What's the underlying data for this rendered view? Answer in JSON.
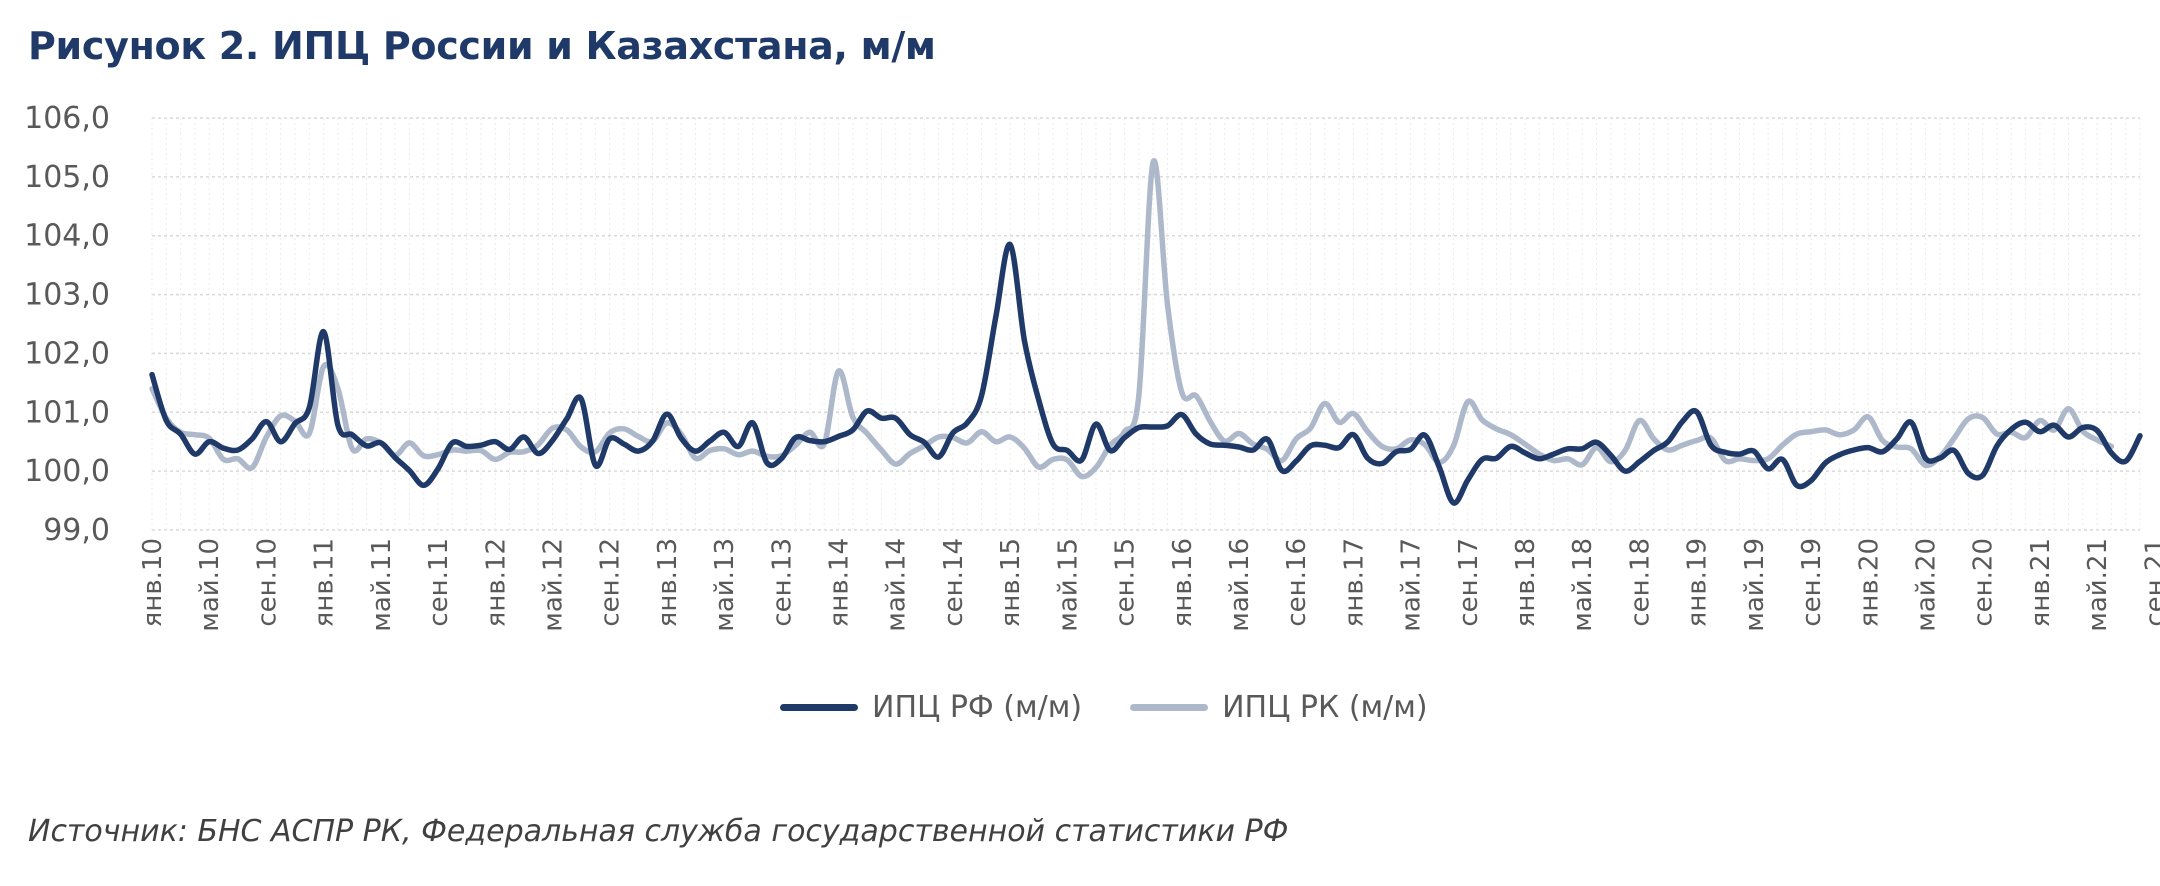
{
  "title": "Рисунок 2. ИПЦ России и Казахстана, м/м",
  "source": "Источник: БНС АСПР РК, Федеральная служба государственной статистики РФ",
  "colors": {
    "rf": "#1f3a68",
    "rk": "#adb9ca",
    "grid": "#d9d9d9",
    "text": "#595959"
  },
  "chart_data": {
    "type": "line",
    "ylim": [
      99.0,
      106.0
    ],
    "yticks": [
      "99,0",
      "100,0",
      "101,0",
      "102,0",
      "103,0",
      "104,0",
      "105,0",
      "106,0"
    ],
    "grid": true,
    "legend_position": "bottom",
    "xtick_labels": [
      "янв.10",
      "май.10",
      "сен.10",
      "янв.11",
      "май.11",
      "сен.11",
      "янв.12",
      "май.12",
      "сен.12",
      "янв.13",
      "май.13",
      "сен.13",
      "янв.14",
      "май.14",
      "сен.14",
      "янв.15",
      "май.15",
      "сен.15",
      "янв.16",
      "май.16",
      "сен.16",
      "янв.17",
      "май.17",
      "сен.17",
      "янв.18",
      "май.18",
      "сен.18",
      "янв.19",
      "май.19",
      "сен.19",
      "янв.20",
      "май.20",
      "сен.20",
      "янв.21",
      "май.21",
      "сен.21"
    ],
    "series": [
      {
        "name": "ИПЦ РФ (м/м)",
        "values": [
          101.64,
          100.86,
          100.63,
          100.29,
          100.5,
          100.39,
          100.36,
          100.55,
          100.84,
          100.5,
          100.81,
          101.08,
          102.37,
          100.78,
          100.62,
          100.43,
          100.48,
          100.23,
          100.01,
          99.76,
          100.04,
          100.48,
          100.42,
          100.44,
          100.5,
          100.37,
          100.58,
          100.3,
          100.52,
          100.89,
          101.23,
          100.1,
          100.55,
          100.46,
          100.34,
          100.51,
          100.97,
          100.56,
          100.34,
          100.51,
          100.66,
          100.42,
          100.82,
          100.14,
          100.21,
          100.57,
          100.52,
          100.5,
          100.59,
          100.7,
          101.02,
          100.9,
          100.9,
          100.62,
          100.49,
          100.24,
          100.65,
          100.82,
          101.28,
          102.62,
          103.85,
          102.22,
          101.21,
          100.46,
          100.35,
          100.19,
          100.8,
          100.35,
          100.57,
          100.74,
          100.75,
          100.77,
          100.96,
          100.63,
          100.46,
          100.44,
          100.41,
          100.36,
          100.54,
          100.01,
          100.17,
          100.43,
          100.44,
          100.4,
          100.62,
          100.22,
          100.13,
          100.33,
          100.37,
          100.61,
          100.07,
          99.46,
          99.85,
          100.2,
          100.22,
          100.42,
          100.31,
          100.21,
          100.29,
          100.38,
          100.38,
          100.49,
          100.27,
          100.0,
          100.16,
          100.35,
          100.5,
          100.84,
          101.01,
          100.44,
          100.32,
          100.29,
          100.34,
          100.04,
          100.2,
          99.76,
          99.84,
          100.14,
          100.28,
          100.36,
          100.4,
          100.33,
          100.55,
          100.83,
          100.22,
          100.22,
          100.35,
          99.96,
          99.93,
          100.43,
          100.71,
          100.83,
          100.67,
          100.78,
          100.58,
          100.74,
          100.69,
          100.31,
          100.17,
          100.6
        ]
      },
      {
        "name": "ИПЦ РК (м/м)",
        "values": [
          101.4,
          100.9,
          100.66,
          100.62,
          100.56,
          100.2,
          100.21,
          100.06,
          100.58,
          100.94,
          100.85,
          100.64,
          101.78,
          101.4,
          100.38,
          100.55,
          100.48,
          100.27,
          100.48,
          100.26,
          100.28,
          100.36,
          100.34,
          100.35,
          100.2,
          100.32,
          100.33,
          100.45,
          100.73,
          100.7,
          100.41,
          100.33,
          100.65,
          100.72,
          100.59,
          100.51,
          100.82,
          100.63,
          100.22,
          100.35,
          100.38,
          100.28,
          100.34,
          100.25,
          100.26,
          100.44,
          100.66,
          100.46,
          101.7,
          100.92,
          100.64,
          100.36,
          100.12,
          100.3,
          100.43,
          100.58,
          100.57,
          100.48,
          100.67,
          100.5,
          100.58,
          100.39,
          100.07,
          100.2,
          100.19,
          99.91,
          100.06,
          100.44,
          100.67,
          101.28,
          105.25,
          102.83,
          101.34,
          101.28,
          100.84,
          100.51,
          100.64,
          100.46,
          100.37,
          100.18,
          100.55,
          100.73,
          101.15,
          100.83,
          100.98,
          100.67,
          100.42,
          100.38,
          100.53,
          100.45,
          100.15,
          100.43,
          101.18,
          100.87,
          100.72,
          100.62,
          100.46,
          100.29,
          100.18,
          100.21,
          100.11,
          100.4,
          100.16,
          100.35,
          100.86,
          100.55,
          100.36,
          100.44,
          100.52,
          100.56,
          100.18,
          100.21,
          100.18,
          100.21,
          100.44,
          100.63,
          100.67,
          100.7,
          100.62,
          100.7,
          100.92,
          100.52,
          100.41,
          100.38,
          100.1,
          100.24,
          100.56,
          100.89,
          100.91,
          100.63,
          100.66,
          100.57,
          100.86,
          100.7,
          101.06,
          100.68,
          100.53,
          100.42
        ]
      }
    ]
  }
}
